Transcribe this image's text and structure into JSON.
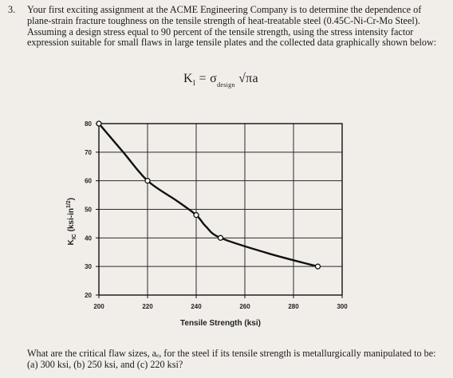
{
  "problem": {
    "number": "3.",
    "statement": "Your first exciting assignment at the ACME Engineering Company is to determine the dependence of plane-strain fracture toughness on the tensile strength of heat-treatable steel (0.45C-Ni-Cr-Mo Steel). Assuming a design stress equal to 90 percent of the tensile strength, using the stress intensity factor expression suitable for small flaws in large tensile plates and the collected data graphically shown below:"
  },
  "formula": {
    "lhs": "K",
    "lhs_sub": "I",
    "equals": "=",
    "sigma": "σ",
    "sigma_sub": "design",
    "radical": "√πa"
  },
  "chart_data": {
    "type": "line",
    "xlabel": "Tensile Strength (ksi)",
    "ylabel": "K",
    "ylabel_sub": "IC",
    "ylabel_unit": " (ksi-in",
    "ylabel_exp": "1/2",
    "ylabel_close": ")",
    "xlim": [
      200,
      300
    ],
    "ylim": [
      20,
      80
    ],
    "xticks": [
      200,
      220,
      240,
      260,
      280,
      300
    ],
    "yticks": [
      20,
      30,
      40,
      50,
      60,
      70,
      80
    ],
    "grid": true,
    "series": [
      {
        "points": [
          [
            200,
            80
          ],
          [
            210,
            70
          ],
          [
            220,
            60
          ],
          [
            232,
            53
          ],
          [
            240,
            48
          ],
          [
            244,
            44
          ],
          [
            250,
            40
          ],
          [
            270,
            34.5
          ],
          [
            290,
            30
          ]
        ],
        "markers": [
          [
            200,
            80
          ],
          [
            220,
            60
          ],
          [
            240,
            48
          ],
          [
            250,
            40
          ],
          [
            290,
            30
          ]
        ]
      }
    ]
  },
  "question": {
    "text": "What are the critical flaw sizes, aₑ, for the steel if its tensile strength is metallurgically manipulated to be: (a) 300 ksi, (b) 250 ksi, and (c) 220 ksi?"
  }
}
